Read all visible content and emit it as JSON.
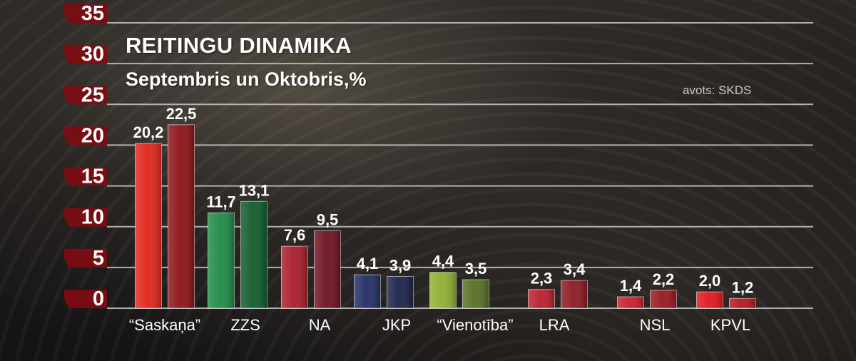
{
  "chart_data": {
    "type": "bar",
    "title": "REITINGU DINAMIKA",
    "subtitle": "Septembris un Oktobris,%",
    "source": "avots: SKDS",
    "categories": [
      "“Saskaņa”",
      "ZZS",
      "NA",
      "JKP",
      "“Vienotība”",
      "LRA",
      "NSL",
      "KPVL"
    ],
    "series": [
      {
        "values": [
          20.2,
          11.7,
          7.6,
          4.1,
          4.4,
          2.3,
          1.4,
          2.0
        ]
      },
      {
        "values": [
          22.5,
          13.1,
          9.5,
          3.9,
          3.5,
          3.4,
          2.2,
          1.2
        ]
      }
    ],
    "value_labels": [
      [
        "20,2",
        "22,5"
      ],
      [
        "11,7",
        "13,1"
      ],
      [
        "7,6",
        "9,5"
      ],
      [
        "4,1",
        "3,9"
      ],
      [
        "4,4",
        "3,5"
      ],
      [
        "2,3",
        "3,4"
      ],
      [
        "1,4",
        "2,2"
      ],
      [
        "2,0",
        "1,2"
      ]
    ],
    "bar_colors": [
      [
        "#e0241b",
        "#8c1217"
      ],
      [
        "#1e8a44",
        "#0f5a2c"
      ],
      [
        "#a71c2b",
        "#6e1120"
      ],
      [
        "#222c63",
        "#1b2148"
      ],
      [
        "#8fb02f",
        "#556f22"
      ],
      [
        "#b81f2a",
        "#8c1820"
      ],
      [
        "#c91d28",
        "#9a161e"
      ],
      [
        "#e0161e",
        "#b5161f"
      ]
    ],
    "yticks": [
      "0",
      "5",
      "10",
      "15",
      "20",
      "25",
      "30",
      "35"
    ],
    "ylim": [
      0,
      35
    ],
    "grid": true,
    "legend": "none"
  },
  "colors": {
    "tick_label": "#ffffff",
    "tick_tab": "#7e0c12",
    "gridline": "#c8c8c8",
    "value_label": "#ffffff"
  }
}
